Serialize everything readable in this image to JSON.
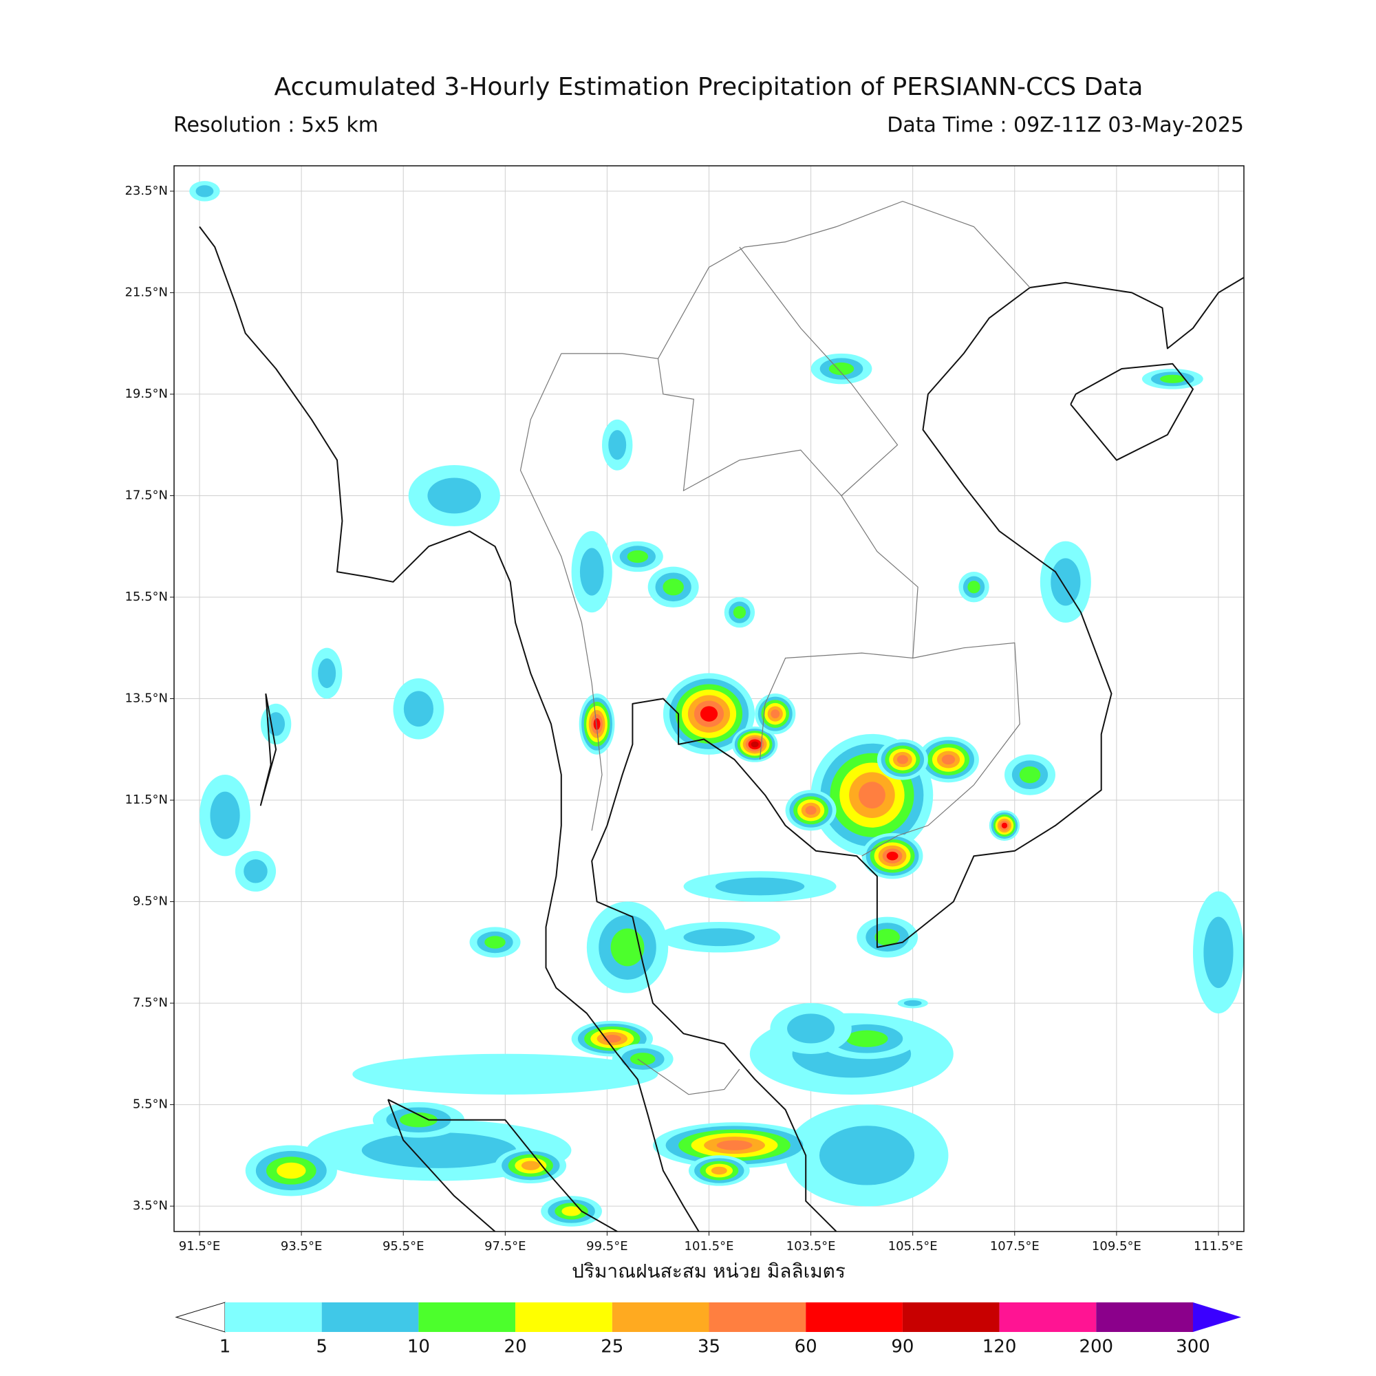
{
  "title": "Accumulated 3-Hourly Estimation Precipitation of PERSIANN-CCS Data",
  "resolution": "Resolution : 5x5 km",
  "data_time": "Data Time : 09Z-11Z 03-May-2025",
  "map": {
    "xlim": [
      91,
      112
    ],
    "ylim": [
      3,
      24
    ],
    "grid": true,
    "xticks": [
      {
        "value": 91.5,
        "label": "91.5°E"
      },
      {
        "value": 93.5,
        "label": "93.5°E"
      },
      {
        "value": 95.5,
        "label": "95.5°E"
      },
      {
        "value": 97.5,
        "label": "97.5°E"
      },
      {
        "value": 99.5,
        "label": "99.5°E"
      },
      {
        "value": 101.5,
        "label": "101.5°E"
      },
      {
        "value": 103.5,
        "label": "103.5°E"
      },
      {
        "value": 105.5,
        "label": "105.5°E"
      },
      {
        "value": 107.5,
        "label": "107.5°E"
      },
      {
        "value": 109.5,
        "label": "109.5°E"
      },
      {
        "value": 111.5,
        "label": "111.5°E"
      }
    ],
    "yticks": [
      {
        "value": 3.5,
        "label": "3.5°N"
      },
      {
        "value": 5.5,
        "label": "5.5°N"
      },
      {
        "value": 7.5,
        "label": "7.5°N"
      },
      {
        "value": 9.5,
        "label": "9.5°N"
      },
      {
        "value": 11.5,
        "label": "11.5°N"
      },
      {
        "value": 13.5,
        "label": "13.5°N"
      },
      {
        "value": 15.5,
        "label": "15.5°N"
      },
      {
        "value": 17.5,
        "label": "17.5°N"
      },
      {
        "value": 19.5,
        "label": "19.5°N"
      },
      {
        "value": 21.5,
        "label": "21.5°N"
      },
      {
        "value": 23.5,
        "label": "23.5°N"
      }
    ],
    "x_axis_label": "ปริมาณฝนสะสม หน่วย มิลลิเมตร"
  },
  "colorbar": {
    "levels": [
      1,
      5,
      10,
      20,
      25,
      35,
      60,
      90,
      120,
      200,
      300
    ],
    "colors": [
      "#80ffff",
      "#40c8e8",
      "#4cff2c",
      "#ffff00",
      "#ffaa20",
      "#ff7f40",
      "#ff0000",
      "#c80000",
      "#ff1493",
      "#8b008b"
    ],
    "under_color": "#ffffff",
    "over_color": "#3a00ff"
  }
}
